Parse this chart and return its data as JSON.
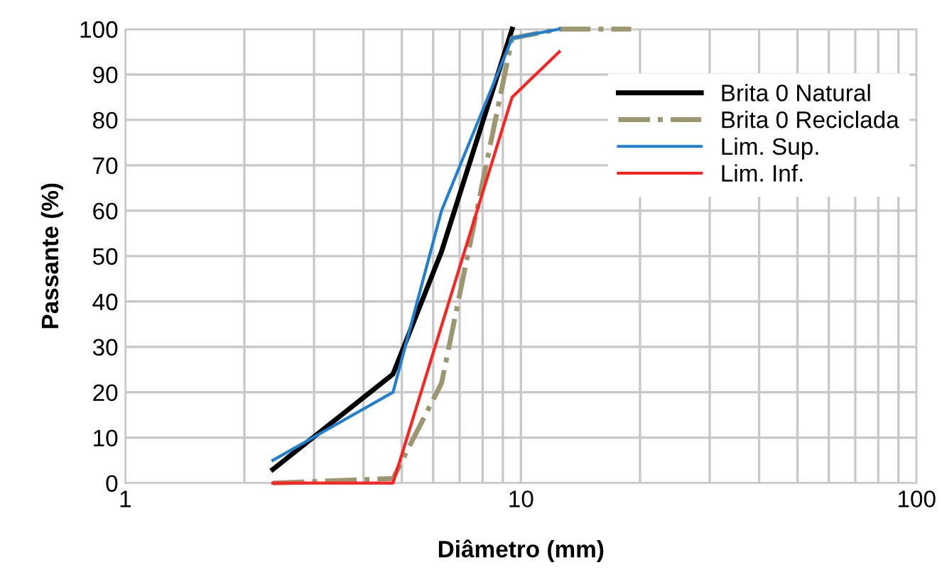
{
  "chart_data": {
    "type": "line",
    "xlabel": "Diâmetro (mm)",
    "ylabel": "Passante (%)",
    "log": "x",
    "xlim": [
      1,
      100
    ],
    "xticks": [
      1,
      10,
      100
    ],
    "ylim": [
      0,
      100
    ],
    "yticks": [
      0,
      10,
      20,
      30,
      40,
      50,
      60,
      70,
      80,
      90,
      100
    ],
    "grid": true,
    "legend": "top right",
    "marker": "none",
    "series": [
      {
        "name": "Brita 0 Natural",
        "color": "#000000",
        "line_style": "solid",
        "x": [
          2.36,
          4.75,
          6.3,
          9.5
        ],
        "values": [
          3,
          24,
          51,
          100
        ]
      },
      {
        "name": "Brita 0 Reciclada",
        "color": "#9c9671",
        "line_style": "dashdot",
        "x": [
          2.36,
          4.75,
          6.3,
          9.5,
          12.5,
          19
        ],
        "values": [
          0,
          1,
          22,
          98,
          100,
          100
        ]
      },
      {
        "name": "Lim. Sup.",
        "color": "#1f7fd0",
        "line_style": "solid",
        "x": [
          2.36,
          4.75,
          6.3,
          9.5,
          12.5
        ],
        "values": [
          5,
          20,
          60,
          98,
          100
        ]
      },
      {
        "name": "Lim. Inf.",
        "color": "#ff2020",
        "line_style": "solid",
        "x": [
          2.36,
          4.75,
          9.5,
          12.5
        ],
        "values": [
          0,
          0,
          85,
          95
        ]
      }
    ]
  }
}
